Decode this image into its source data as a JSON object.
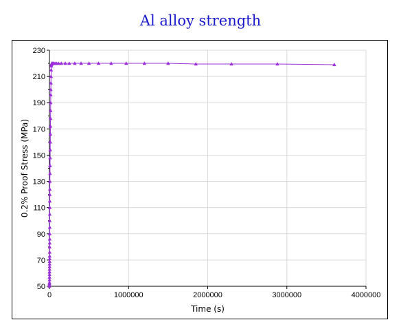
{
  "chart_data": {
    "type": "line",
    "title": "Al alloy strength",
    "xlabel": "Time (s)",
    "ylabel": "0.2% Proof Stress (MPa)",
    "xlim": [
      0,
      4000000
    ],
    "ylim": [
      50,
      230
    ],
    "xticks": [
      0,
      1000000,
      2000000,
      3000000,
      4000000
    ],
    "yticks": [
      50,
      70,
      90,
      110,
      130,
      150,
      170,
      190,
      210,
      230
    ],
    "grid": true,
    "legend": "none",
    "series_color": "#9b30d9",
    "series": [
      {
        "marker": "triangle",
        "x": [
          0,
          200,
          400,
          600,
          800,
          1000,
          1200,
          1400,
          1600,
          1800,
          2000,
          2200,
          2400,
          2600,
          2800,
          3000,
          3200,
          3400,
          3600,
          3800,
          4000,
          4200,
          4400,
          4600,
          4800,
          5000,
          6000,
          7000,
          8000,
          9000,
          10000,
          11000,
          12000,
          13000,
          14000,
          15000,
          16000,
          17000,
          18000,
          19000,
          20000,
          22000,
          24000,
          26000,
          28000,
          30000,
          32000,
          35000,
          40000,
          45000,
          55000,
          70000,
          90000,
          115000,
          150000,
          200000,
          250000,
          320000,
          400000,
          500000,
          620000,
          780000,
          970000,
          1200000,
          1500000,
          1850000,
          2300000,
          2880000,
          3600000
        ],
        "y": [
          50,
          51,
          52,
          53,
          55,
          57,
          59,
          61,
          63,
          65,
          67,
          69,
          71,
          73,
          76,
          80,
          83,
          86,
          90,
          95,
          100,
          105,
          110,
          115,
          120,
          124,
          130,
          136,
          142,
          148,
          154,
          160,
          166,
          172,
          178,
          184,
          190,
          196,
          200,
          205,
          210,
          215,
          218,
          219,
          219.5,
          220,
          220,
          220,
          220,
          220,
          220,
          220,
          220,
          220,
          220,
          220,
          220,
          220,
          220,
          220,
          220,
          220,
          220,
          220,
          220,
          219.5,
          219.5,
          219.5,
          219
        ]
      }
    ]
  }
}
